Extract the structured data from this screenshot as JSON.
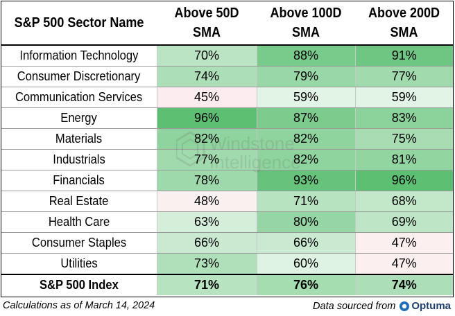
{
  "chart_data": {
    "type": "table",
    "columns": [
      "S&P 500 Sector Name",
      "Above 50D SMA",
      "Above 100D SMA",
      "Above 200D SMA"
    ],
    "column_lines": [
      [
        "S&P 500 Sector Name"
      ],
      [
        "Above 50D",
        "SMA"
      ],
      [
        "Above 100D",
        "SMA"
      ],
      [
        "Above 200D",
        "SMA"
      ]
    ],
    "rows": [
      {
        "sector": "Information Technology",
        "values": [
          70,
          88,
          91
        ]
      },
      {
        "sector": "Consumer Discretionary",
        "values": [
          74,
          79,
          77
        ]
      },
      {
        "sector": "Communication Services",
        "values": [
          45,
          59,
          59
        ]
      },
      {
        "sector": "Energy",
        "values": [
          96,
          87,
          83
        ]
      },
      {
        "sector": "Materials",
        "values": [
          82,
          82,
          75
        ]
      },
      {
        "sector": "Industrials",
        "values": [
          77,
          82,
          81
        ]
      },
      {
        "sector": "Financials",
        "values": [
          78,
          93,
          96
        ]
      },
      {
        "sector": "Real Estate",
        "values": [
          48,
          71,
          68
        ]
      },
      {
        "sector": "Health Care",
        "values": [
          63,
          80,
          69
        ]
      },
      {
        "sector": "Consumer Staples",
        "values": [
          66,
          66,
          47
        ]
      },
      {
        "sector": "Utilities",
        "values": [
          73,
          60,
          47
        ]
      }
    ],
    "total_row": {
      "sector": "S&P 500 Index",
      "values": [
        71,
        76,
        74
      ]
    },
    "value_suffix": "%",
    "color_scale": {
      "low": "#fdecef",
      "mid": "#f1faf2",
      "high": "#5cbf72"
    }
  },
  "footer": {
    "left": "Calculations as of March 14, 2024",
    "right": "Data sourced from",
    "logo_text": "Optuma"
  },
  "watermark": {
    "line1": "Windstone",
    "line2": "Intelligence"
  }
}
